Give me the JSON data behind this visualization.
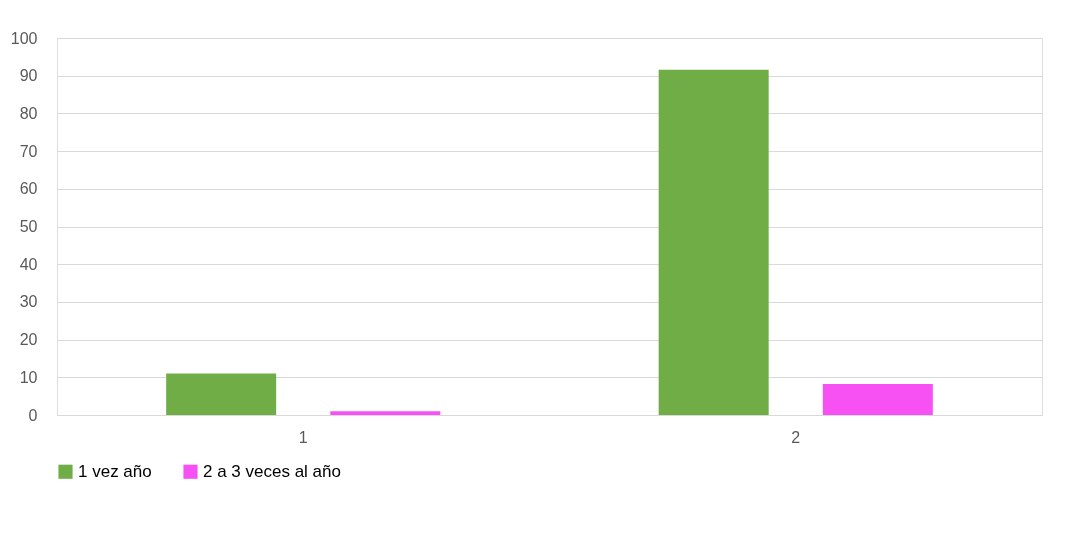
{
  "chart_data": {
    "type": "bar",
    "categories": [
      "1",
      "2"
    ],
    "series": [
      {
        "name": "1 vez año",
        "color": "#70ad47",
        "values": [
          11,
          91.6
        ]
      },
      {
        "name": "2 a 3 veces al año",
        "color": "#f751f3",
        "values": [
          1,
          8.2
        ]
      }
    ],
    "ylim": [
      0,
      100
    ],
    "yticks": [
      0,
      10,
      20,
      30,
      40,
      50,
      60,
      70,
      80,
      90,
      100
    ],
    "grid": "y",
    "legend": "bottom"
  }
}
